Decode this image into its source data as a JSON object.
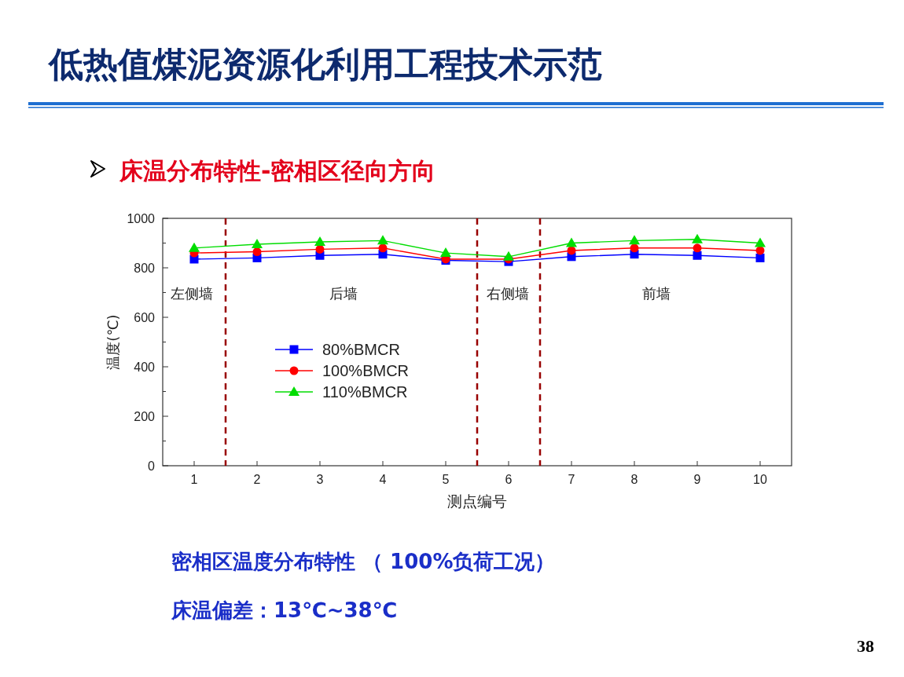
{
  "chart_data": {
    "type": "line",
    "title": "低热值煤泥资源化利用工程技术示范",
    "subtitle": "床温分布特性-密相区径向方向",
    "xlabel": "测点编号",
    "ylabel": "温度(℃)",
    "x": [
      1,
      2,
      3,
      4,
      5,
      6,
      7,
      8,
      9,
      10
    ],
    "series": [
      {
        "name": "80%BMCR",
        "color": "#0000ff",
        "marker": "square",
        "values": [
          835,
          840,
          850,
          855,
          830,
          825,
          845,
          855,
          850,
          840
        ]
      },
      {
        "name": "100%BMCR",
        "color": "#ff0000",
        "marker": "circle",
        "values": [
          860,
          865,
          875,
          880,
          835,
          835,
          870,
          880,
          880,
          870
        ]
      },
      {
        "name": "110%BMCR",
        "color": "#00dd00",
        "marker": "triangle",
        "values": [
          880,
          895,
          905,
          910,
          860,
          845,
          900,
          910,
          915,
          900
        ]
      }
    ],
    "xlim": [
      0.5,
      10.5
    ],
    "ylim": [
      0,
      1000
    ],
    "xticks": [
      1,
      2,
      3,
      4,
      5,
      6,
      7,
      8,
      9,
      10
    ],
    "yticks": [
      0,
      {
        "value": 100,
        "label": null
      },
      200,
      {
        "value": 300,
        "label": null
      },
      400,
      {
        "value": 500,
        "label": null
      },
      600,
      {
        "value": 700,
        "label": null
      },
      800,
      {
        "value": 900,
        "label": null
      },
      1000
    ],
    "ref_lines": [
      {
        "axis": "x",
        "value": 1.5,
        "color": "#990000",
        "line_style": "dashed"
      },
      {
        "axis": "x",
        "value": 5.5,
        "color": "#990000",
        "line_style": "dashed"
      },
      {
        "axis": "x",
        "value": 6.5,
        "color": "#990000",
        "line_style": "dashed"
      }
    ],
    "annotations": [
      "左侧墙",
      "后墙",
      "右侧墙",
      "前墙",
      "密相区温度分布特性 （ 100%负荷工况）",
      "床温偏差：13℃~38℃",
      "38"
    ],
    "legend": "left",
    "line_style": "solid"
  }
}
